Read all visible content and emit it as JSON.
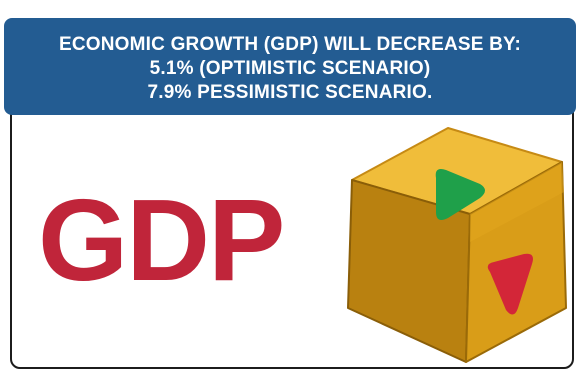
{
  "banner": {
    "line1": "ECONOMIC GROWTH (GDP) WILL DECREASE BY:",
    "line2": "5.1% (OPTIMISTIC SCENARIO)",
    "line3": "7.9% PESSIMISTIC SCENARIO."
  },
  "logo": {
    "text": "GDP"
  },
  "colors": {
    "banner_bg": "#235c92",
    "gdp_red": "#c0253a",
    "cube_yellow": "#e4a81e",
    "arrow_green": "#1fa04a",
    "arrow_red": "#d32638"
  },
  "icons": {
    "cube": "gdp-cube-icon",
    "up": "green-triangle-icon",
    "down": "red-triangle-icon"
  }
}
